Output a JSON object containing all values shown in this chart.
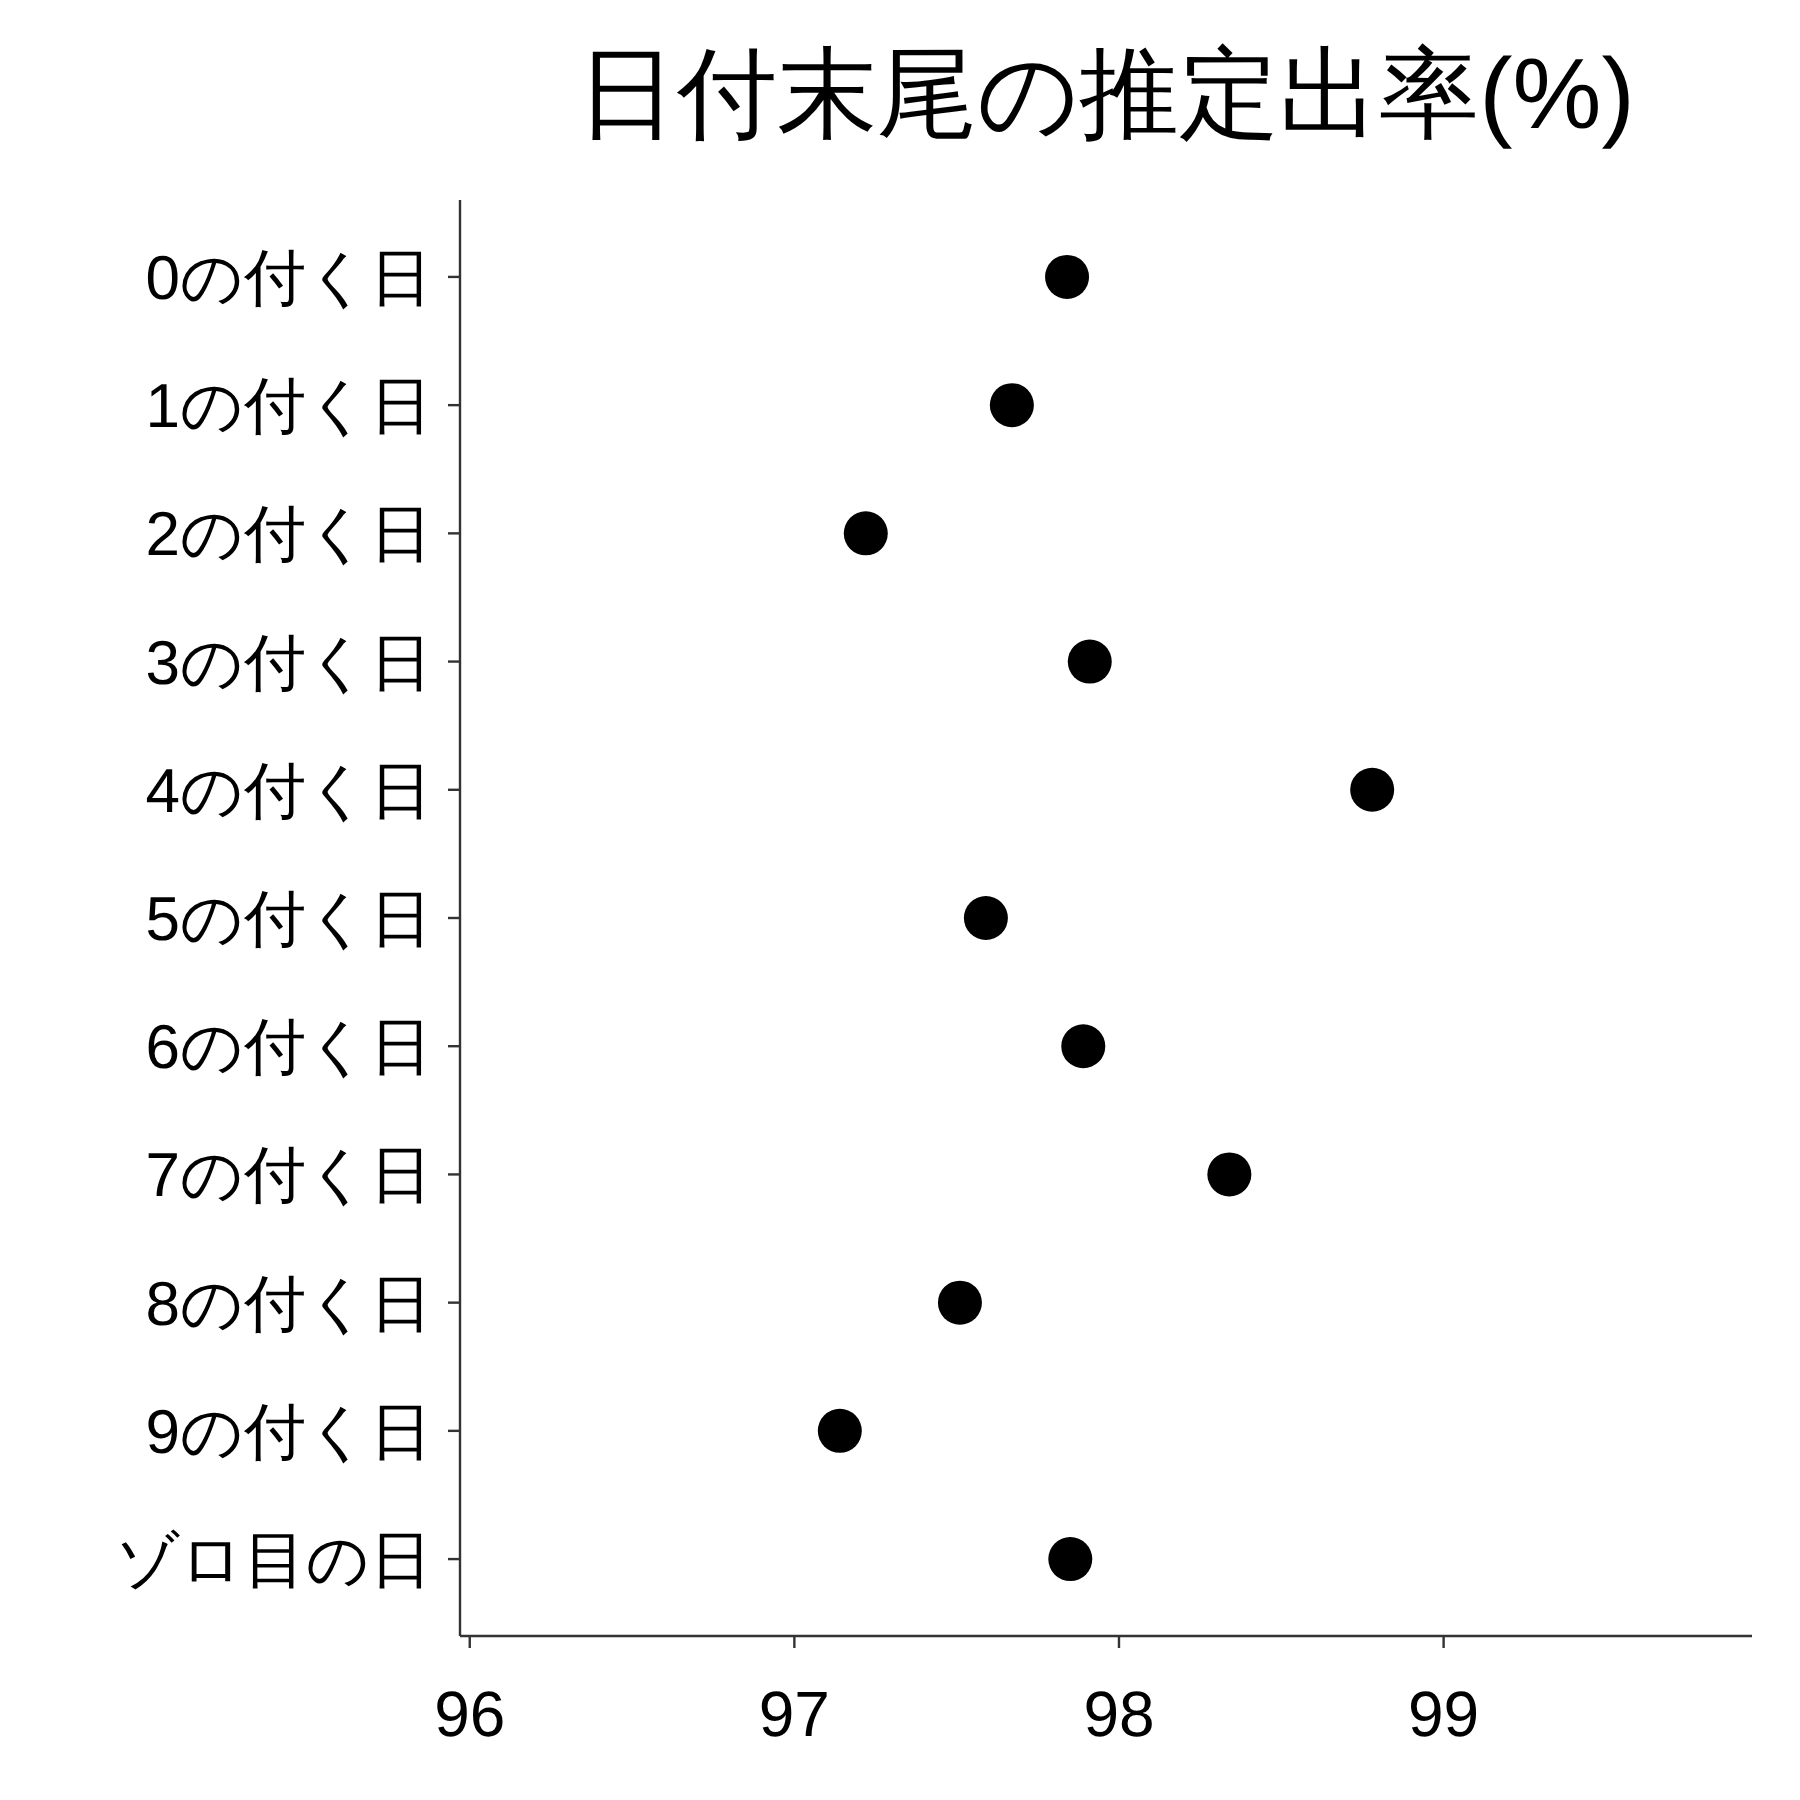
{
  "chart_data": {
    "type": "scatter",
    "orientation": "horizontal",
    "title": "日付末尾の推定出率(%)",
    "categories": [
      "0の付く日",
      "1の付く日",
      "2の付く日",
      "3の付く日",
      "4の付く日",
      "5の付く日",
      "6の付く日",
      "7の付く日",
      "8の付く日",
      "9の付く日",
      "ゾロ目の日"
    ],
    "values": [
      97.84,
      97.67,
      97.22,
      97.91,
      98.78,
      97.59,
      97.89,
      98.34,
      97.51,
      97.14,
      97.85
    ],
    "color": "#000000",
    "marker": "circle",
    "xlim": [
      95.97,
      99.95
    ],
    "xticks": [
      96,
      97,
      98,
      99
    ],
    "grid": false
  }
}
